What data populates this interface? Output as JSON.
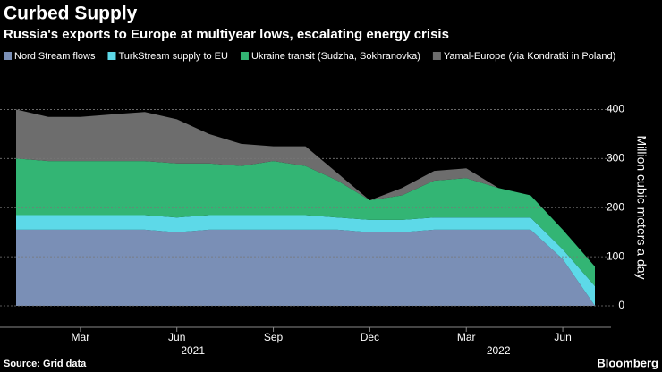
{
  "chart_data": {
    "type": "stacked-area",
    "title": "Curbed Supply",
    "subtitle": "Russia's exports to Europe at multiyear lows, escalating energy crisis",
    "y_label": "Million cubic meters a day",
    "source": "Source: Grid data",
    "brand": "Bloomberg",
    "x": [
      "2021-01",
      "2021-02",
      "2021-03",
      "2021-04",
      "2021-05",
      "2021-06",
      "2021-07",
      "2021-08",
      "2021-09",
      "2021-10",
      "2021-11",
      "2021-12",
      "2022-01",
      "2022-02",
      "2022-03",
      "2022-04",
      "2022-05",
      "2022-06",
      "2022-07"
    ],
    "xticks": [
      {
        "value": "2021-03",
        "label": "Mar"
      },
      {
        "value": "2021-06",
        "label": "Jun"
      },
      {
        "value": "2021-09",
        "label": "Sep"
      },
      {
        "value": "2021-12",
        "label": "Dec"
      },
      {
        "value": "2022-03",
        "label": "Mar"
      },
      {
        "value": "2022-06",
        "label": "Jun"
      }
    ],
    "years": [
      "2021",
      "2022"
    ],
    "ylim": [
      0,
      450
    ],
    "yticks": [
      0,
      100,
      200,
      300,
      400
    ],
    "grid": true,
    "series": [
      {
        "name": "Nord Stream flows",
        "color": "#7a8fb6",
        "values": [
          155,
          155,
          155,
          155,
          155,
          150,
          155,
          155,
          155,
          155,
          155,
          150,
          150,
          155,
          155,
          155,
          155,
          95,
          0
        ]
      },
      {
        "name": "TurkStream supply to EU",
        "color": "#5dd9e8",
        "values": [
          30,
          30,
          30,
          30,
          30,
          30,
          30,
          30,
          30,
          30,
          25,
          25,
          25,
          25,
          25,
          25,
          25,
          20,
          40
        ]
      },
      {
        "name": "Ukraine transit (Sudzha, Sokhranovka)",
        "color": "#33b574",
        "values": [
          115,
          110,
          110,
          110,
          110,
          110,
          105,
          100,
          110,
          100,
          75,
          40,
          50,
          75,
          80,
          60,
          45,
          40,
          40
        ]
      },
      {
        "name": "Yamal-Europe (via Kondratki in Poland)",
        "color": "#6d6d6d",
        "values": [
          100,
          90,
          90,
          95,
          100,
          90,
          60,
          45,
          30,
          40,
          15,
          0,
          15,
          20,
          20,
          0,
          0,
          0,
          0
        ]
      }
    ]
  }
}
